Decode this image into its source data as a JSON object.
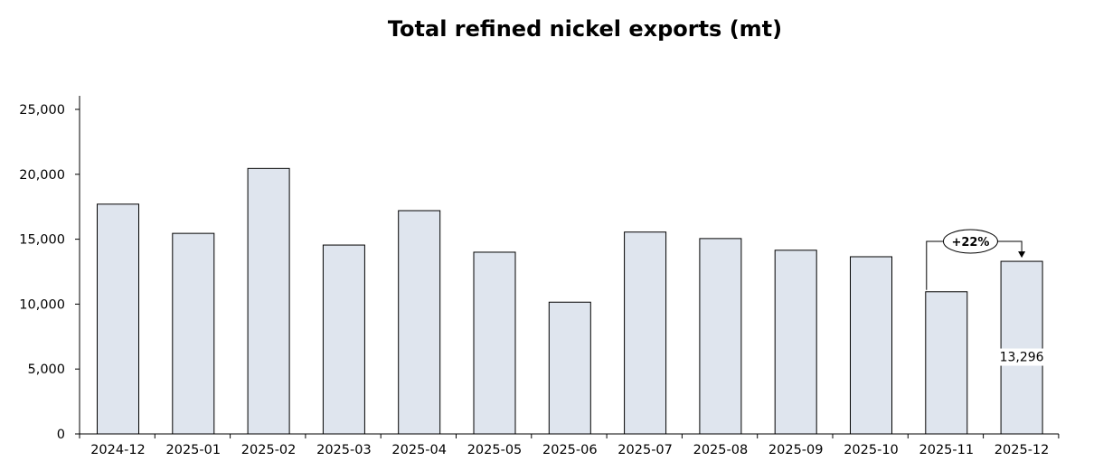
{
  "chart_data": {
    "type": "bar",
    "title": "Total refined nickel exports (mt)",
    "categories": [
      "2024-12",
      "2025-01",
      "2025-02",
      "2025-03",
      "2025-04",
      "2025-05",
      "2025-06",
      "2025-07",
      "2025-08",
      "2025-09",
      "2025-10",
      "2025-11",
      "2025-12"
    ],
    "values": [
      17700,
      15450,
      20450,
      14550,
      17200,
      14000,
      10150,
      15550,
      15050,
      14150,
      13650,
      10950,
      13296
    ],
    "ylim": [
      0,
      25000
    ],
    "yticks": [
      0,
      5000,
      10000,
      15000,
      20000,
      25000
    ],
    "ytick_labels": [
      "0",
      "5,000",
      "10,000",
      "15,000",
      "20,000",
      "25,000"
    ],
    "xlabel": "",
    "ylabel": "",
    "grid": false,
    "bar_color": "#dfe5ee",
    "data_labels": [
      {
        "category": "2025-12",
        "text": "13,296"
      }
    ],
    "annotation": {
      "from": "2025-11",
      "to": "2025-12",
      "text": "+22%"
    }
  }
}
